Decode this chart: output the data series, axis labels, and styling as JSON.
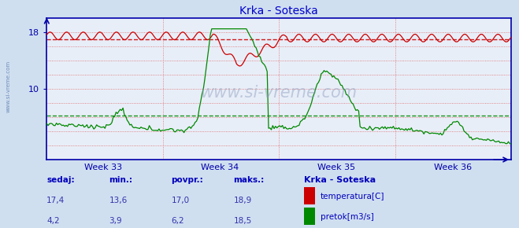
{
  "title": "Krka - Soteska",
  "title_color": "#0000cc",
  "bg_color": "#d0dff0",
  "plot_bg_color": "#e8eef8",
  "week_labels": [
    "Week 33",
    "Week 34",
    "Week 35",
    "Week 36"
  ],
  "temp_color": "#cc0000",
  "flow_color": "#008800",
  "temp_avg": 17.0,
  "flow_avg": 6.2,
  "temp_min": 13.6,
  "temp_max": 18.9,
  "flow_min": 3.9,
  "flow_max": 18.5,
  "temp_current": 17.4,
  "flow_current": 4.2,
  "watermark": "www.si-vreme.com",
  "legend_station": "Krka - Soteska",
  "legend_temp": "temperatura[C]",
  "legend_flow": "pretok[m3/s]",
  "label_sedaj": "sedaj:",
  "label_min": "min.:",
  "label_povpr": "povpr.:",
  "label_maks": "maks.:",
  "axis_color": "#0000aa",
  "n_points": 336,
  "ylim_max": 20,
  "flow_scale": 1.0
}
